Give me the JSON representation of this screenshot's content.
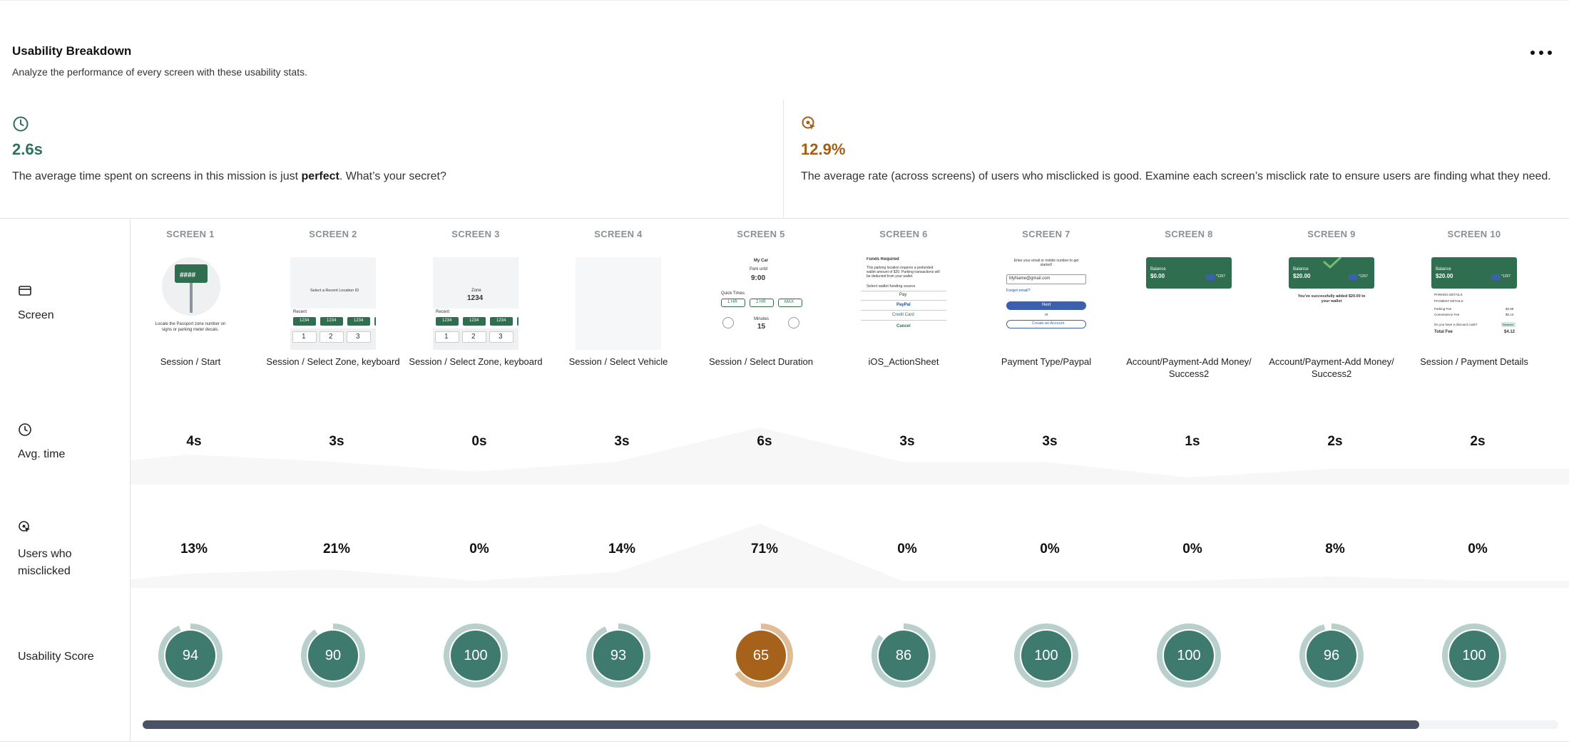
{
  "header": {
    "title": "Usability Breakdown",
    "subtitle": "Analyze the performance of every screen with these usability stats.",
    "more_icon": "more-horizontal-icon"
  },
  "stats": {
    "avg_time": {
      "icon": "clock-icon",
      "value": "2.6s",
      "desc_before": "The average time spent on screens in this mission is just ",
      "desc_bold": "perfect",
      "desc_after": ". What’s your secret?",
      "color": "#2f6f5e"
    },
    "misclick": {
      "icon": "cursor-target-icon",
      "value": "12.9%",
      "desc": "The average rate (across screens) of users who misclicked is good. Examine each screen’s misclick rate to ensure users are finding what they need.",
      "color": "#a65d14"
    }
  },
  "rows": {
    "screen": "Screen",
    "avg_time": "Avg. time",
    "misclicked": "Users who misclicked",
    "usability": "Usability Score"
  },
  "screens": [
    {
      "header": "SCREEN 1",
      "name": "Session / Start",
      "avg": "4s",
      "mis": "13%",
      "score": "94",
      "score_value": 94
    },
    {
      "header": "SCREEN 2",
      "name": "Session / Select Zone, keyboard",
      "avg": "3s",
      "mis": "21%",
      "score": "90",
      "score_value": 90
    },
    {
      "header": "SCREEN 3",
      "name": "Session / Select Zone, keyboard",
      "avg": "0s",
      "mis": "0%",
      "score": "100",
      "score_value": 100
    },
    {
      "header": "SCREEN 4",
      "name": "Session / Select Vehicle",
      "avg": "3s",
      "mis": "14%",
      "score": "93",
      "score_value": 93
    },
    {
      "header": "SCREEN 5",
      "name": "Session / Select Duration",
      "avg": "6s",
      "mis": "71%",
      "score": "65",
      "score_value": 65
    },
    {
      "header": "SCREEN 6",
      "name": "iOS_ActionSheet",
      "avg": "3s",
      "mis": "0%",
      "score": "86",
      "score_value": 86
    },
    {
      "header": "SCREEN 7",
      "name": "Payment Type/Paypal",
      "avg": "3s",
      "mis": "0%",
      "score": "100",
      "score_value": 100
    },
    {
      "header": "SCREEN 8",
      "name": "Account/Payment-Add Money/ Success2",
      "avg": "1s",
      "mis": "0%",
      "score": "100",
      "score_value": 100
    },
    {
      "header": "SCREEN 9",
      "name": "Account/Payment-Add Money/ Success2",
      "avg": "2s",
      "mis": "8%",
      "score": "96",
      "score_value": 96
    },
    {
      "header": "SCREEN 10",
      "name": "Session / Payment Details",
      "avg": "2s",
      "mis": "0%",
      "score": "100",
      "score_value": 100
    }
  ],
  "thumb_text": {
    "s1_sign": "####",
    "s1_caption": "Locate the Passport zone number on signs or parking meter decals.",
    "s2_prompt": "Select a Recent Location ID",
    "s2_recent": "Recent",
    "s2_keys": [
      "1234",
      "1234",
      "1234"
    ],
    "s2_nums": [
      "1",
      "2",
      "3"
    ],
    "s3_zone": "Zone",
    "s3_zone_val": "1234",
    "s5_car": "My Car",
    "s5_park": "Park until",
    "s5_time": "9:00",
    "s5_quick": "Quick Times",
    "s5_opts": [
      "1 HR",
      "2 HR",
      "MAX"
    ],
    "s5_minutes": "Minutes",
    "s5_min_val": "15",
    "s6_title": "Funds Required",
    "s6_body": "This parking location requires a prefunded wallet amount of $20. Parking transactions will be deducted from your wallet.",
    "s6_select": "Select wallet funding source",
    "s6_opts": [
      "Pay",
      "PayPal",
      "Credit Card"
    ],
    "s6_cancel": "Cancel",
    "s7_prompt": "Enter your email or mobile number to get started!",
    "s7_email": "MyName@gmail.com",
    "s7_forgot": "Forgot email?",
    "s7_next": "Next",
    "s7_or": "or",
    "s7_create": "Create an Account",
    "s8_balance": "Balance",
    "s8_amount": "$0.00",
    "s9_amount": "$20.00",
    "s9_msg": "You've successfully added $20.00 to your wallet",
    "card_num": "*1257",
    "s10_pkg": "PARKING DETAILS",
    "s10_pay": "PAYMENT DETAILS",
    "s10_fee": "Parking Fee",
    "s10_conv": "Convenience Fee",
    "s10_total": "Total Fee",
    "s10_total_val": "$4.12",
    "s10_fee_val": "$3.99",
    "s10_conv_val": "$0.13",
    "s10_discount": "Do you have a discount code?",
    "s10_redeem": "Redeem"
  },
  "colors": {
    "score_good": "#3e7a6e",
    "score_ring_good": "#b9cfcc",
    "score_warn": "#a6611a",
    "score_ring_warn": "#dfbd97",
    "accent_green": "#2f6f5e",
    "accent_orange": "#a65d14"
  }
}
